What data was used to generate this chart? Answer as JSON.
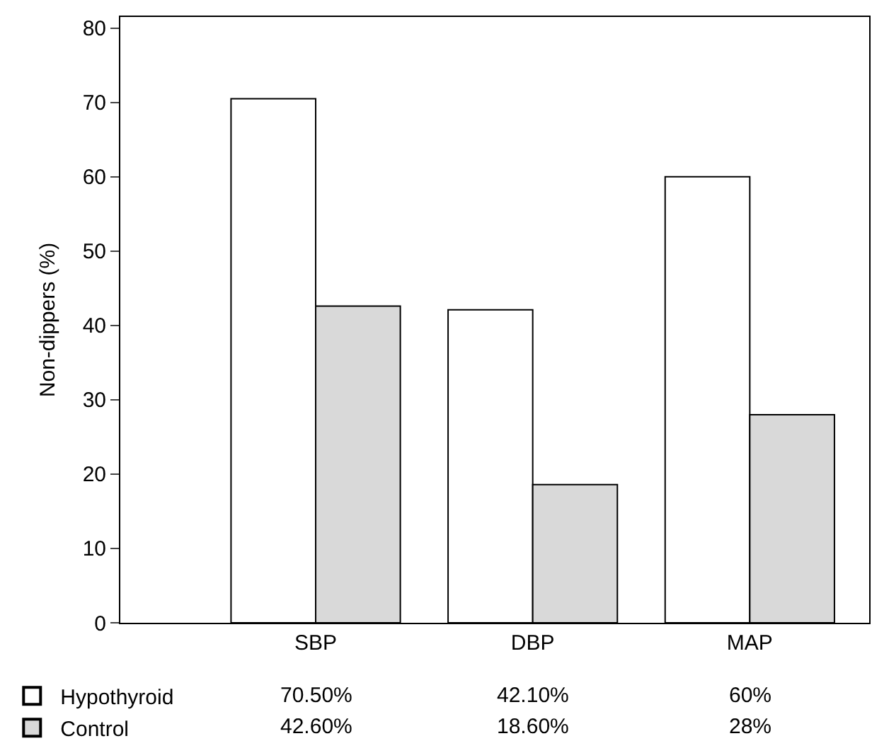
{
  "chart_data": {
    "type": "bar",
    "ylabel": "Non-dippers (%)",
    "categories": [
      "SBP",
      "DBP",
      "MAP"
    ],
    "series": [
      {
        "name": "Hypothyroid",
        "color": "#ffffff",
        "values": [
          70.5,
          42.1,
          60
        ],
        "value_labels": [
          "70.50%",
          "42.10%",
          "60%"
        ]
      },
      {
        "name": "Control",
        "color": "#d9d9d9",
        "values": [
          42.6,
          18.6,
          28
        ],
        "value_labels": [
          "42.60%",
          "18.60%",
          "28%"
        ]
      }
    ],
    "ylim": [
      0,
      81.5
    ],
    "yticks": [
      0,
      10,
      20,
      30,
      40,
      50,
      60,
      70,
      80
    ],
    "legend": "bottom left"
  }
}
